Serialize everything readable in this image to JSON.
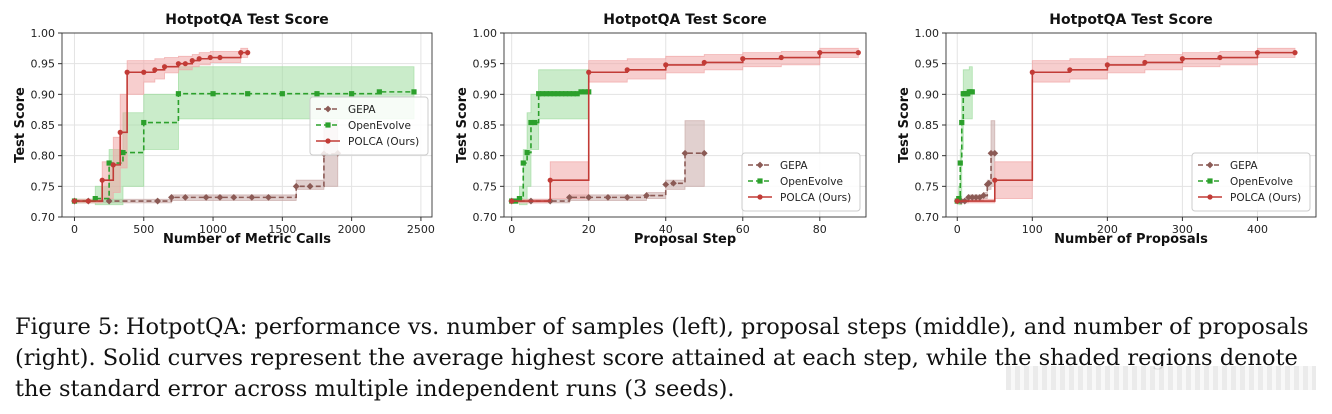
{
  "colors": {
    "gepa": "#8b5a55",
    "openevolve": "#2ca02c",
    "polca": "#c23b36",
    "gepa_band": "#c9aaa7",
    "openevolve_band": "#9fdc9f",
    "polca_band": "#f0a6a6"
  },
  "legend_labels": [
    "GEPA",
    "OpenEvolve",
    "POLCA (Ours)"
  ],
  "chart_data": [
    {
      "type": "line",
      "title": "HotpotQA Test Score",
      "xlabel": "Number of Metric Calls",
      "ylabel": "Test Score",
      "xlim": [
        -90,
        2580
      ],
      "ylim": [
        0.7,
        1.0
      ],
      "xticks": [
        0,
        500,
        1000,
        1500,
        2000,
        2500
      ],
      "yticks": [
        0.7,
        0.75,
        0.8,
        0.85,
        0.9,
        0.95,
        1.0
      ],
      "grid": true,
      "legend_position": "center-right",
      "series": [
        {
          "name": "GEPA",
          "key": "gepa",
          "marker": "diamond",
          "dash": true,
          "x": [
            0,
            100,
            250,
            600,
            700,
            800,
            950,
            1050,
            1150,
            1280,
            1400,
            1600,
            1700,
            1800,
            1900
          ],
          "y": [
            0.726,
            0.726,
            0.726,
            0.726,
            0.732,
            0.732,
            0.732,
            0.732,
            0.732,
            0.732,
            0.732,
            0.75,
            0.75,
            0.803,
            0.804
          ],
          "band_lo": [
            0.723,
            0.723,
            0.723,
            0.723,
            0.727,
            0.727,
            0.727,
            0.727,
            0.727,
            0.727,
            0.727,
            0.745,
            0.745,
            0.75,
            0.75
          ],
          "band_hi": [
            0.729,
            0.729,
            0.729,
            0.729,
            0.736,
            0.736,
            0.736,
            0.736,
            0.736,
            0.736,
            0.736,
            0.76,
            0.76,
            0.857,
            0.857
          ]
        },
        {
          "name": "OpenEvolve",
          "key": "openevolve",
          "marker": "square",
          "dash": true,
          "x": [
            0,
            150,
            250,
            350,
            500,
            750,
            1000,
            1250,
            1500,
            1750,
            2000,
            2200,
            2450
          ],
          "y": [
            0.726,
            0.73,
            0.788,
            0.805,
            0.854,
            0.901,
            0.901,
            0.901,
            0.901,
            0.901,
            0.901,
            0.904,
            0.904
          ],
          "band_lo": [
            0.723,
            0.72,
            0.72,
            0.75,
            0.81,
            0.86,
            0.86,
            0.86,
            0.86,
            0.86,
            0.86,
            0.86,
            0.86
          ],
          "band_hi": [
            0.729,
            0.75,
            0.81,
            0.87,
            0.9,
            0.945,
            0.945,
            0.945,
            0.945,
            0.945,
            0.945,
            0.945,
            0.945
          ]
        },
        {
          "name": "POLCA (Ours)",
          "key": "polca",
          "marker": "circle",
          "dash": false,
          "x": [
            0,
            100,
            200,
            280,
            330,
            380,
            500,
            580,
            650,
            750,
            800,
            850,
            900,
            980,
            1050,
            1200,
            1250
          ],
          "y": [
            0.726,
            0.726,
            0.76,
            0.785,
            0.838,
            0.936,
            0.936,
            0.94,
            0.945,
            0.95,
            0.95,
            0.955,
            0.958,
            0.96,
            0.96,
            0.968,
            0.968
          ],
          "band_lo": [
            0.723,
            0.723,
            0.73,
            0.74,
            0.78,
            0.9,
            0.92,
            0.925,
            0.935,
            0.94,
            0.94,
            0.945,
            0.948,
            0.952,
            0.952,
            0.96,
            0.96
          ],
          "band_hi": [
            0.729,
            0.729,
            0.79,
            0.83,
            0.9,
            0.955,
            0.955,
            0.958,
            0.96,
            0.962,
            0.962,
            0.965,
            0.968,
            0.97,
            0.97,
            0.975,
            0.975
          ]
        }
      ]
    },
    {
      "type": "line",
      "title": "HotpotQA Test Score",
      "xlabel": "Proposal Step",
      "ylabel": "Test Score",
      "xlim": [
        -2,
        92
      ],
      "ylim": [
        0.7,
        1.0
      ],
      "xticks": [
        0,
        20,
        40,
        60,
        80
      ],
      "yticks": [
        0.7,
        0.75,
        0.8,
        0.85,
        0.9,
        0.95,
        1.0
      ],
      "grid": true,
      "legend_position": "lower-right",
      "series": [
        {
          "name": "GEPA",
          "key": "gepa",
          "marker": "diamond",
          "dash": true,
          "x": [
            0,
            5,
            10,
            15,
            20,
            25,
            30,
            35,
            40,
            42,
            45,
            50
          ],
          "y": [
            0.726,
            0.726,
            0.726,
            0.732,
            0.732,
            0.732,
            0.732,
            0.735,
            0.753,
            0.755,
            0.804,
            0.804
          ],
          "band_lo": [
            0.723,
            0.723,
            0.723,
            0.727,
            0.727,
            0.727,
            0.727,
            0.73,
            0.745,
            0.745,
            0.75,
            0.75
          ],
          "band_hi": [
            0.729,
            0.729,
            0.729,
            0.736,
            0.736,
            0.736,
            0.736,
            0.74,
            0.76,
            0.76,
            0.857,
            0.857
          ]
        },
        {
          "name": "OpenEvolve",
          "key": "openevolve",
          "marker": "square",
          "dash": true,
          "x": [
            0,
            1,
            2,
            3,
            4,
            5,
            6,
            7,
            8,
            9,
            10,
            11,
            12,
            13,
            14,
            15,
            16,
            17,
            18,
            19,
            20
          ],
          "y": [
            0.726,
            0.726,
            0.73,
            0.788,
            0.805,
            0.854,
            0.854,
            0.901,
            0.901,
            0.901,
            0.901,
            0.901,
            0.901,
            0.901,
            0.901,
            0.901,
            0.901,
            0.901,
            0.904,
            0.904,
            0.904
          ],
          "band_lo": [
            0.723,
            0.723,
            0.72,
            0.72,
            0.75,
            0.81,
            0.81,
            0.86,
            0.86,
            0.86,
            0.86,
            0.86,
            0.86,
            0.86,
            0.86,
            0.86,
            0.86,
            0.86,
            0.86,
            0.86,
            0.86
          ],
          "band_hi": [
            0.729,
            0.729,
            0.75,
            0.81,
            0.87,
            0.9,
            0.9,
            0.94,
            0.94,
            0.94,
            0.94,
            0.94,
            0.94,
            0.94,
            0.94,
            0.94,
            0.94,
            0.94,
            0.94,
            0.94,
            0.94
          ]
        },
        {
          "name": "POLCA (Ours)",
          "key": "polca",
          "marker": "circle",
          "dash": false,
          "x": [
            0,
            10,
            20,
            30,
            40,
            50,
            60,
            70,
            80,
            90
          ],
          "y": [
            0.726,
            0.76,
            0.936,
            0.94,
            0.948,
            0.952,
            0.958,
            0.96,
            0.968,
            0.968
          ],
          "band_lo": [
            0.723,
            0.73,
            0.92,
            0.925,
            0.935,
            0.94,
            0.945,
            0.948,
            0.96,
            0.96
          ],
          "band_hi": [
            0.729,
            0.79,
            0.955,
            0.958,
            0.962,
            0.965,
            0.968,
            0.97,
            0.975,
            0.975
          ]
        }
      ]
    },
    {
      "type": "line",
      "title": "HotpotQA Test Score",
      "xlabel": "Number of Proposals",
      "ylabel": "Test Score",
      "xlim": [
        -15,
        478
      ],
      "ylim": [
        0.7,
        1.0
      ],
      "xticks": [
        0,
        100,
        200,
        300,
        400
      ],
      "yticks": [
        0.7,
        0.75,
        0.8,
        0.85,
        0.9,
        0.95,
        1.0
      ],
      "grid": true,
      "legend_position": "lower-right",
      "series": [
        {
          "name": "GEPA",
          "key": "gepa",
          "marker": "diamond",
          "dash": true,
          "x": [
            0,
            5,
            10,
            15,
            20,
            25,
            30,
            35,
            40,
            42,
            45,
            50
          ],
          "y": [
            0.726,
            0.726,
            0.726,
            0.732,
            0.732,
            0.732,
            0.732,
            0.735,
            0.753,
            0.755,
            0.804,
            0.804
          ],
          "band_lo": [
            0.723,
            0.723,
            0.723,
            0.727,
            0.727,
            0.727,
            0.727,
            0.73,
            0.745,
            0.745,
            0.75,
            0.75
          ],
          "band_hi": [
            0.729,
            0.729,
            0.729,
            0.736,
            0.736,
            0.736,
            0.736,
            0.74,
            0.76,
            0.76,
            0.857,
            0.857
          ]
        },
        {
          "name": "OpenEvolve",
          "key": "openevolve",
          "marker": "square",
          "dash": true,
          "x": [
            0,
            2,
            4,
            6,
            8,
            10,
            12,
            14,
            16,
            18,
            20
          ],
          "y": [
            0.726,
            0.73,
            0.788,
            0.854,
            0.901,
            0.901,
            0.901,
            0.901,
            0.904,
            0.904,
            0.904
          ],
          "band_lo": [
            0.723,
            0.72,
            0.72,
            0.81,
            0.86,
            0.86,
            0.86,
            0.86,
            0.86,
            0.86,
            0.86
          ],
          "band_hi": [
            0.729,
            0.75,
            0.81,
            0.9,
            0.94,
            0.94,
            0.94,
            0.94,
            0.945,
            0.945,
            0.945
          ]
        },
        {
          "name": "POLCA (Ours)",
          "key": "polca",
          "marker": "circle",
          "dash": false,
          "x": [
            0,
            50,
            100,
            150,
            200,
            250,
            300,
            350,
            400,
            450
          ],
          "y": [
            0.726,
            0.76,
            0.936,
            0.94,
            0.948,
            0.952,
            0.958,
            0.96,
            0.968,
            0.968
          ],
          "band_lo": [
            0.723,
            0.73,
            0.92,
            0.925,
            0.935,
            0.94,
            0.945,
            0.948,
            0.96,
            0.96
          ],
          "band_hi": [
            0.729,
            0.79,
            0.955,
            0.958,
            0.962,
            0.965,
            0.968,
            0.97,
            0.975,
            0.975
          ]
        }
      ]
    }
  ],
  "caption": {
    "label": "Figure 5:",
    "text": "HotpotQA: performance vs. number of samples (left), proposal steps (middle), and number of proposals (right). Solid curves represent the average highest score attained at each step, while the shaded regions denote the standard error across multiple independent runs (3 seeds)."
  }
}
